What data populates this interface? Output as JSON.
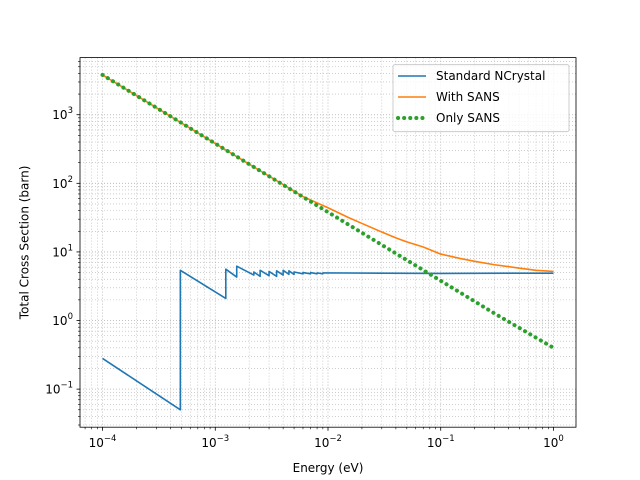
{
  "chart_data": {
    "type": "line",
    "xscale": "log",
    "yscale": "log",
    "xlabel": "Energy (eV)",
    "ylabel": "Total Cross Section (barn)",
    "xlim": [
      6.31e-05,
      1.585
    ],
    "ylim": [
      0.02786,
      6800
    ],
    "grid": "major-and-minor-dotted",
    "legend_position": "upper right",
    "x_ticks": [
      {
        "value": 0.0001,
        "base": "10",
        "exp": "−4"
      },
      {
        "value": 0.001,
        "base": "10",
        "exp": "−3"
      },
      {
        "value": 0.01,
        "base": "10",
        "exp": "−2"
      },
      {
        "value": 0.1,
        "base": "10",
        "exp": "−1"
      },
      {
        "value": 1,
        "base": "10",
        "exp": "0"
      }
    ],
    "y_ticks": [
      {
        "value": 0.1,
        "base": "10",
        "exp": "−1"
      },
      {
        "value": 1,
        "base": "10",
        "exp": "0"
      },
      {
        "value": 10,
        "base": "10",
        "exp": "1"
      },
      {
        "value": 100,
        "base": "10",
        "exp": "2"
      },
      {
        "value": 1000,
        "base": "10",
        "exp": "3"
      }
    ],
    "series": [
      {
        "name": "Standard NCrystal",
        "color": "#1f77b4",
        "style": "solid",
        "points": [
          [
            0.0001,
            0.28
          ],
          [
            0.00049,
            0.05
          ],
          [
            0.00049,
            5.4
          ],
          [
            0.00124,
            2.1
          ],
          [
            0.00124,
            5.6
          ],
          [
            0.00155,
            4.3
          ],
          [
            0.00155,
            6.2
          ],
          [
            0.0022,
            4.6
          ],
          [
            0.0022,
            5.1
          ],
          [
            0.0025,
            4.4
          ],
          [
            0.0025,
            5.4
          ],
          [
            0.003,
            4.5
          ],
          [
            0.003,
            5.2
          ],
          [
            0.0035,
            4.4
          ],
          [
            0.0035,
            5.3
          ],
          [
            0.004,
            4.6
          ],
          [
            0.004,
            5.4
          ],
          [
            0.0045,
            4.7
          ],
          [
            0.0045,
            5.3
          ],
          [
            0.005,
            4.7
          ],
          [
            0.005,
            5.1
          ],
          [
            0.006,
            4.8
          ],
          [
            0.006,
            5.0
          ],
          [
            0.007,
            4.8
          ],
          [
            0.007,
            5.0
          ],
          [
            0.008,
            4.8
          ],
          [
            0.008,
            4.95
          ],
          [
            0.009,
            4.8
          ],
          [
            0.009,
            4.95
          ],
          [
            0.1,
            4.85
          ],
          [
            0.5,
            4.9
          ],
          [
            1,
            4.9
          ]
        ]
      },
      {
        "name": "With SANS",
        "color": "#ff7f0e",
        "style": "solid",
        "points": [
          [
            0.0001,
            3800
          ],
          [
            0.00025,
            1520
          ],
          [
            0.0005,
            760
          ],
          [
            0.001,
            380
          ],
          [
            0.002,
            190
          ],
          [
            0.004,
            96
          ],
          [
            0.006,
            64
          ],
          [
            0.01,
            44
          ],
          [
            0.015,
            32
          ],
          [
            0.02,
            26
          ],
          [
            0.03,
            19.5
          ],
          [
            0.04,
            16
          ],
          [
            0.05,
            14
          ],
          [
            0.07,
            11.8
          ],
          [
            0.1,
            9.3
          ],
          [
            0.15,
            8.0
          ],
          [
            0.2,
            7.3
          ],
          [
            0.3,
            6.5
          ],
          [
            0.5,
            5.8
          ],
          [
            0.7,
            5.4
          ],
          [
            1,
            5.2
          ]
        ]
      },
      {
        "name": "Only SANS",
        "color": "#2ca02c",
        "style": "dotted",
        "points": [
          [
            0.0001,
            3800
          ],
          [
            0.0003,
            1267
          ],
          [
            0.001,
            380
          ],
          [
            0.003,
            126.7
          ],
          [
            0.01,
            38
          ],
          [
            0.03,
            12.67
          ],
          [
            0.1,
            3.8
          ],
          [
            0.3,
            1.267
          ],
          [
            1,
            0.4
          ]
        ]
      }
    ]
  }
}
